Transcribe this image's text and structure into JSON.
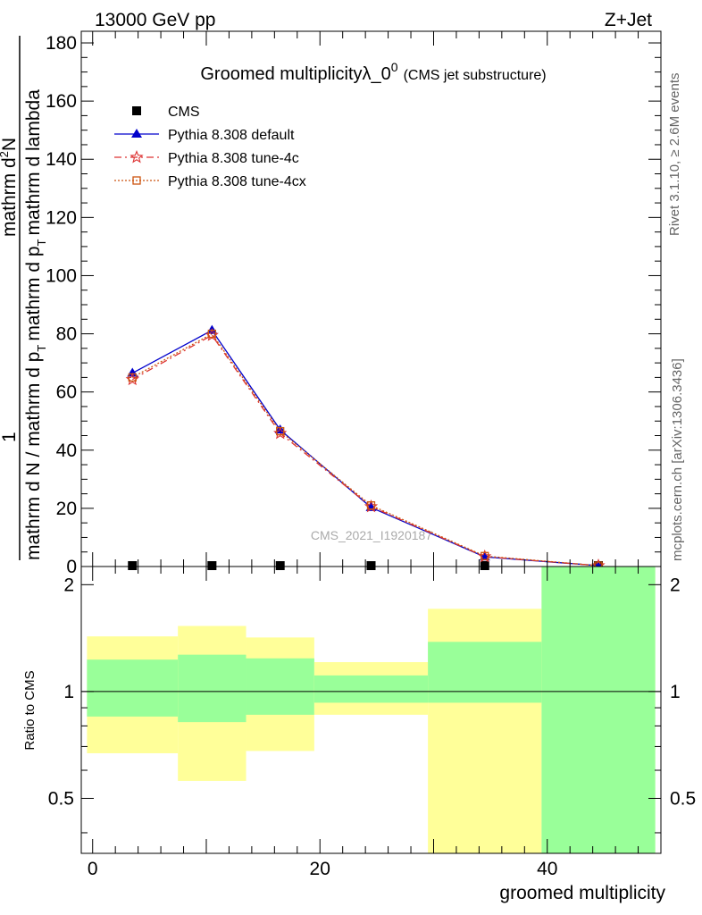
{
  "header": {
    "left": "13000 GeV pp",
    "right": "Z+Jet"
  },
  "side_labels": {
    "rivet": "Rivet 3.1.10, ≥ 2.6M events",
    "mcplots": "mcplots.cern.ch [arXiv:1306.3436]"
  },
  "watermark": "CMS_2021_I1920187",
  "chart_data": [
    {
      "type": "line",
      "title_main": "Groomed multiplicityλ_0",
      "title_sup": "0",
      "title_sub": "(CMS jet substructure)",
      "ylabel_parts": [
        "1",
        "mathrm d N / mathrm d p",
        "T",
        "mathrm d p",
        "T",
        "mathrm d lambda",
        "mathrm d",
        "2",
        "N"
      ],
      "ylabel_numer": "mathrm d²N",
      "ylabel_denom": "mathrm d N / mathrm d p_T mathrm d p_T mathrm d lambda",
      "xlim": [
        -1,
        50
      ],
      "ylim": [
        0,
        184
      ],
      "yticks": [
        0,
        20,
        40,
        60,
        80,
        100,
        120,
        140,
        160,
        180
      ],
      "legend_position": "top-left",
      "x": [
        3.5,
        10.5,
        16.5,
        24.5,
        34.5,
        44.5
      ],
      "series": [
        {
          "name": "CMS",
          "color": "#000000",
          "marker": "square",
          "values": [
            0.3,
            0.3,
            0.3,
            0.3,
            0.3,
            0.3
          ]
        },
        {
          "name": "Pythia 8.308 default",
          "color": "#0000cc",
          "marker": "triangle",
          "values": [
            66.5,
            81.2,
            47.0,
            20.3,
            3.3,
            0.3
          ]
        },
        {
          "name": "Pythia 8.308 tune-4c",
          "color": "#dd3333",
          "marker": "star",
          "values": [
            64.3,
            79.5,
            45.8,
            20.6,
            3.4,
            0.3
          ]
        },
        {
          "name": "Pythia 8.308 tune-4cx",
          "color": "#cc5511",
          "marker": "open-square",
          "values": [
            65.0,
            80.0,
            46.5,
            21.0,
            3.6,
            0.3
          ]
        }
      ]
    },
    {
      "type": "area",
      "ylabel": "Ratio to CMS",
      "xlabel": "groomed multiplicity",
      "xlim": [
        -1,
        50
      ],
      "ylim": [
        0.35,
        2.25
      ],
      "yticks": [
        0.5,
        1,
        2
      ],
      "xticks": [
        0,
        20,
        40
      ],
      "bins": [
        [
          -0.5,
          7.5
        ],
        [
          7.5,
          13.5
        ],
        [
          13.5,
          19.5
        ],
        [
          19.5,
          29.5
        ],
        [
          29.5,
          39.5
        ],
        [
          39.5,
          49.5
        ]
      ],
      "band_inner": [
        [
          0.85,
          1.23
        ],
        [
          0.82,
          1.27
        ],
        [
          0.86,
          1.24
        ],
        [
          0.93,
          1.11
        ],
        [
          0.93,
          1.38
        ],
        [
          0.35,
          2.25
        ]
      ],
      "band_outer": [
        [
          0.67,
          1.43
        ],
        [
          0.56,
          1.53
        ],
        [
          0.68,
          1.42
        ],
        [
          0.86,
          1.21
        ],
        [
          0.35,
          1.71
        ],
        [
          0.35,
          2.25
        ]
      ],
      "band_colors": {
        "inner": "#99ff99",
        "outer": "#ffff99"
      },
      "reference_line": 1
    }
  ]
}
